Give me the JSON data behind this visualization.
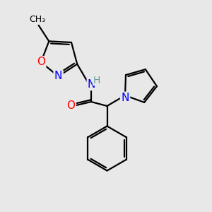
{
  "background_color": "#e8e8e8",
  "bond_color": "#000000",
  "atom_colors": {
    "N": "#0000ff",
    "O": "#ff0000",
    "C": "#000000",
    "H": "#5f9ea0"
  },
  "bond_width": 1.6,
  "font_size_atom": 11,
  "figsize": [
    3.0,
    3.0
  ],
  "dpi": 100
}
